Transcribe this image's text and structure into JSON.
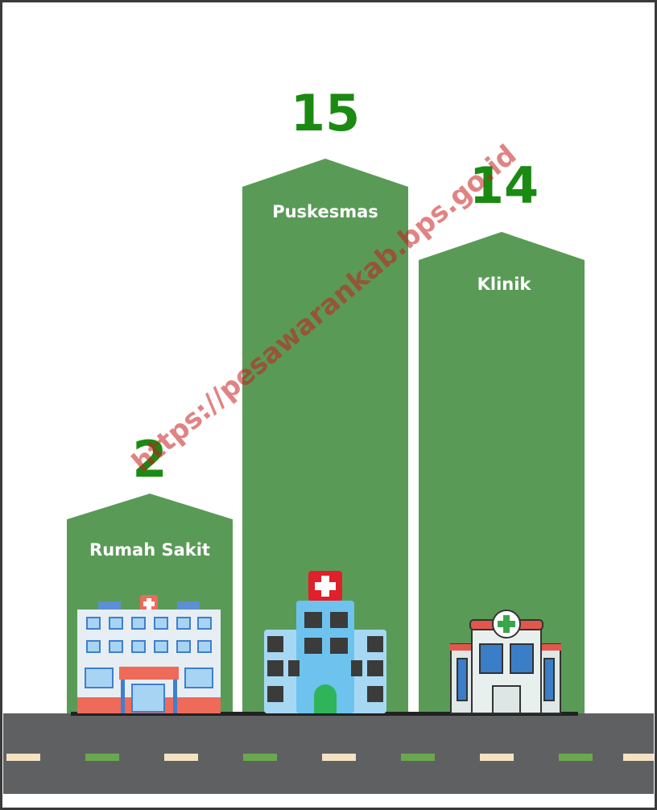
{
  "watermark": "https://pesawarankab.bps.go.id",
  "buildings": [
    {
      "label": "Rumah Sakit",
      "count": 2
    },
    {
      "label": "Puskesmas",
      "count": 15
    },
    {
      "label": "Klinik",
      "count": 14
    }
  ]
}
